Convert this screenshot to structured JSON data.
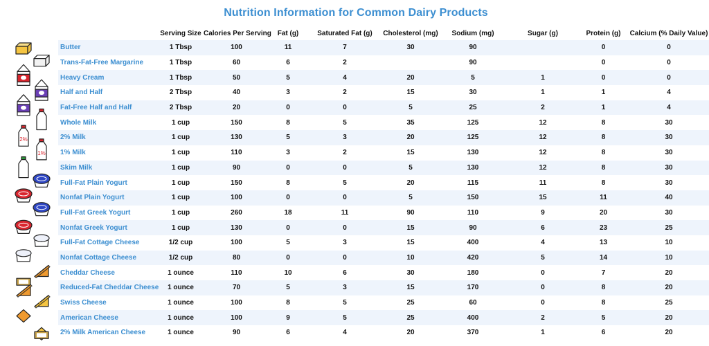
{
  "chart_data": {
    "type": "table",
    "title": "Nutrition Information for Common Dairy Products",
    "columns": [
      "",
      "Serving Size",
      "Calories Per Serving",
      "Fat (g)",
      "Saturated Fat (g)",
      "Cholesterol (mg)",
      "Sodium (mg)",
      "Sugar (g)",
      "Protein (g)",
      "Calcium (% Daily Value)"
    ],
    "rows": [
      [
        "Butter",
        "1 Tbsp",
        "100",
        "11",
        "7",
        "30",
        "90",
        "",
        "0",
        "0"
      ],
      [
        "Trans-Fat-Free Margarine",
        "1 Tbsp",
        "60",
        "6",
        "2",
        "",
        "90",
        "",
        "0",
        "0"
      ],
      [
        "Heavy Cream",
        "1 Tbsp",
        "50",
        "5",
        "4",
        "20",
        "5",
        "1",
        "0",
        "0"
      ],
      [
        "Half and Half",
        "2 Tbsp",
        "40",
        "3",
        "2",
        "15",
        "30",
        "1",
        "1",
        "4"
      ],
      [
        "Fat-Free Half and Half",
        "2 Tbsp",
        "20",
        "0",
        "0",
        "5",
        "25",
        "2",
        "1",
        "4"
      ],
      [
        "Whole Milk",
        "1 cup",
        "150",
        "8",
        "5",
        "35",
        "125",
        "12",
        "8",
        "30"
      ],
      [
        "2% Milk",
        "1 cup",
        "130",
        "5",
        "3",
        "20",
        "125",
        "12",
        "8",
        "30"
      ],
      [
        "1% Milk",
        "1 cup",
        "110",
        "3",
        "2",
        "15",
        "130",
        "12",
        "8",
        "30"
      ],
      [
        "Skim Milk",
        "1 cup",
        "90",
        "0",
        "0",
        "5",
        "130",
        "12",
        "8",
        "30"
      ],
      [
        "Full-Fat Plain Yogurt",
        "1 cup",
        "150",
        "8",
        "5",
        "20",
        "115",
        "11",
        "8",
        "30"
      ],
      [
        "Nonfat Plain Yogurt",
        "1 cup",
        "100",
        "0",
        "0",
        "5",
        "150",
        "15",
        "11",
        "40"
      ],
      [
        "Full-Fat Greek Yogurt",
        "1 cup",
        "260",
        "18",
        "11",
        "90",
        "110",
        "9",
        "20",
        "30"
      ],
      [
        "Nonfat Greek Yogurt",
        "1 cup",
        "130",
        "0",
        "0",
        "15",
        "90",
        "6",
        "23",
        "25"
      ],
      [
        "Full-Fat Cottage Cheese",
        "1/2 cup",
        "100",
        "5",
        "3",
        "15",
        "400",
        "4",
        "13",
        "10"
      ],
      [
        "Nonfat Cottage Cheese",
        "1/2 cup",
        "80",
        "0",
        "0",
        "10",
        "420",
        "5",
        "14",
        "10"
      ],
      [
        "Cheddar Cheese",
        "1 ounce",
        "110",
        "10",
        "6",
        "30",
        "180",
        "0",
        "7",
        "20"
      ],
      [
        "Reduced-Fat Cheddar Cheese",
        "1 ounce",
        "70",
        "5",
        "3",
        "15",
        "170",
        "0",
        "8",
        "20"
      ],
      [
        "Swiss Cheese",
        "1 ounce",
        "100",
        "8",
        "5",
        "25",
        "60",
        "0",
        "8",
        "25"
      ],
      [
        "American Cheese",
        "1 ounce",
        "100",
        "9",
        "5",
        "25",
        "400",
        "2",
        "5",
        "20"
      ],
      [
        "2% Milk American Cheese",
        "1 ounce",
        "90",
        "6",
        "4",
        "20",
        "370",
        "1",
        "6",
        "20"
      ]
    ]
  },
  "icons": {
    "items": [
      "butter-icon",
      "margarine-icon",
      "cream-carton-icon",
      "half-and-half-carton-icon",
      "fat-free-half-and-half-carton-icon",
      "whole-milk-bottle-icon",
      "2-percent-milk-bottle-icon",
      "1-percent-milk-bottle-icon",
      "skim-milk-bottle-icon",
      "plain-yogurt-cup-icon",
      "nonfat-plain-yogurt-cup-icon",
      "greek-yogurt-cup-icon",
      "nonfat-greek-yogurt-cup-icon",
      "cottage-cheese-tub-icon",
      "nonfat-cottage-cheese-tub-icon",
      "cheddar-cheese-wedge-icon",
      "reduced-fat-cheddar-icon",
      "swiss-cheese-wedge-icon",
      "american-cheese-slice-icon",
      "2-percent-milk-american-cheese-icon"
    ],
    "labels": {
      "two_percent": "2%",
      "one_percent": "1%"
    }
  },
  "colors": {
    "accent": "#3d8fd1",
    "row_stripe": "#eef4fc",
    "cheese": "#f5c542",
    "cheddar": "#ef9a2f",
    "red": "#d9262e",
    "purple": "#6a3fb5",
    "blue": "#2f47c4",
    "cottage": "#eef1fa",
    "outline": "#222222"
  }
}
